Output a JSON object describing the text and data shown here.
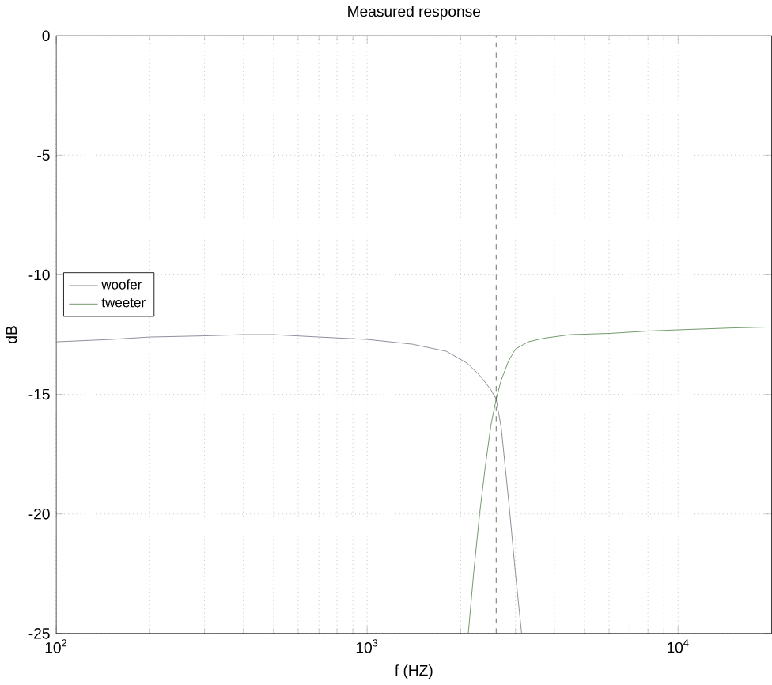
{
  "chart_data": {
    "type": "line",
    "title": "Measured response",
    "xlabel": "f (HZ)",
    "ylabel": "dB",
    "log": "x",
    "xlim": [
      100,
      20000
    ],
    "ylim": [
      -25,
      0
    ],
    "xticks": [
      {
        "value": 100,
        "label": "10$^{2}$"
      },
      {
        "value": 1000,
        "label": "10$^{3}$"
      },
      {
        "value": 10000,
        "label": "10$^{4}$"
      }
    ],
    "yticks": [
      -25,
      -20,
      -15,
      -10,
      -5,
      0
    ],
    "grid": true,
    "legend": "left",
    "line_style": "solid",
    "ref_lines": [
      {
        "axis": "x",
        "value": 2600,
        "line_style": "dashed",
        "color": "#555555"
      }
    ],
    "series": [
      {
        "name": "woofer",
        "color": "#7c7c8c",
        "x": [
          100,
          150,
          200,
          300,
          400,
          500,
          700,
          1000,
          1400,
          1800,
          2100,
          2300,
          2500,
          2600,
          2700,
          2860,
          3000,
          3140
        ],
        "values": [
          -12.8,
          -12.7,
          -12.6,
          -12.55,
          -12.5,
          -12.5,
          -12.6,
          -12.7,
          -12.9,
          -13.2,
          -13.7,
          -14.2,
          -14.8,
          -15.2,
          -16.4,
          -19.6,
          -22.5,
          -25
        ]
      },
      {
        "name": "tweeter",
        "color": "#5a8a50",
        "x": [
          2115,
          2200,
          2300,
          2400,
          2500,
          2600,
          2700,
          2850,
          3000,
          3300,
          3700,
          4500,
          6000,
          8000,
          10000,
          15000,
          20000
        ],
        "values": [
          -25,
          -22.5,
          -20,
          -18,
          -16.3,
          -15.2,
          -14.4,
          -13.6,
          -13.1,
          -12.8,
          -12.65,
          -12.5,
          -12.45,
          -12.35,
          -12.3,
          -12.22,
          -12.18
        ]
      }
    ]
  }
}
